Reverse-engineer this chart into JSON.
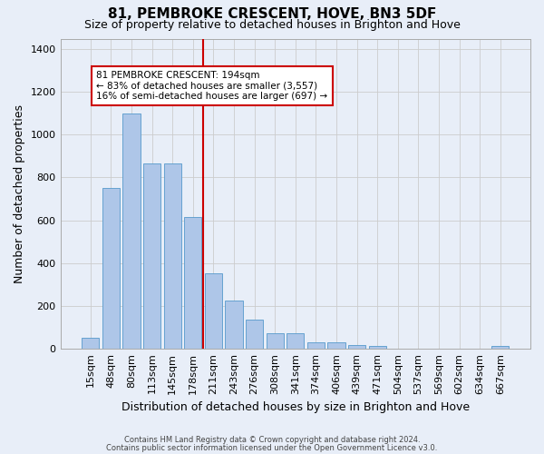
{
  "title": "81, PEMBROKE CRESCENT, HOVE, BN3 5DF",
  "subtitle": "Size of property relative to detached houses in Brighton and Hove",
  "xlabel": "Distribution of detached houses by size in Brighton and Hove",
  "ylabel": "Number of detached properties",
  "footnote1": "Contains HM Land Registry data © Crown copyright and database right 2024.",
  "footnote2": "Contains public sector information licensed under the Open Government Licence v3.0.",
  "bar_labels": [
    "15sqm",
    "48sqm",
    "80sqm",
    "113sqm",
    "145sqm",
    "178sqm",
    "211sqm",
    "243sqm",
    "276sqm",
    "308sqm",
    "341sqm",
    "374sqm",
    "406sqm",
    "439sqm",
    "471sqm",
    "504sqm",
    "537sqm",
    "569sqm",
    "602sqm",
    "634sqm",
    "667sqm"
  ],
  "bar_values": [
    50,
    750,
    1100,
    865,
    865,
    615,
    350,
    225,
    135,
    70,
    70,
    30,
    30,
    15,
    10,
    0,
    0,
    0,
    0,
    0,
    10
  ],
  "bar_color": "#aec6e8",
  "bar_edge_color": "#5599cc",
  "vline_color": "#cc0000",
  "annotation_line1": "81 PEMBROKE CRESCENT: 194sqm",
  "annotation_line2": "← 83% of detached houses are smaller (3,557)",
  "annotation_line3": "16% of semi-detached houses are larger (697) →",
  "annotation_box_color": "#ffffff",
  "annotation_box_edgecolor": "#cc0000",
  "grid_color": "#cccccc",
  "background_color": "#e8eef8",
  "ylim": [
    0,
    1450
  ],
  "yticks": [
    0,
    200,
    400,
    600,
    800,
    1000,
    1200,
    1400
  ],
  "title_fontsize": 11,
  "subtitle_fontsize": 9,
  "ylabel_fontsize": 9,
  "xlabel_fontsize": 9
}
